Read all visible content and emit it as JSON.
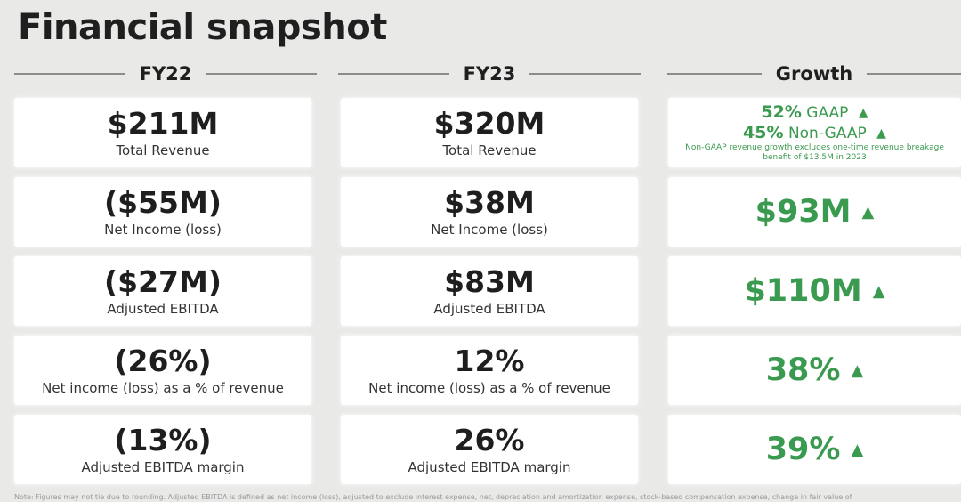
{
  "title": "Financial snapshot",
  "columns": {
    "fy22": "FY22",
    "fy23": "FY23",
    "growth": "Growth"
  },
  "fy22": [
    {
      "value": "$211M",
      "label": "Total Revenue"
    },
    {
      "value": "($55M)",
      "label": "Net Income (loss)"
    },
    {
      "value": "($27M)",
      "label": "Adjusted EBITDA"
    },
    {
      "value": "(26%)",
      "label": "Net income (loss) as a % of revenue"
    },
    {
      "value": "(13%)",
      "label": "Adjusted EBITDA margin"
    }
  ],
  "fy23": [
    {
      "value": "$320M",
      "label": "Total Revenue"
    },
    {
      "value": "$38M",
      "label": "Net Income (loss)"
    },
    {
      "value": "$83M",
      "label": "Adjusted EBITDA"
    },
    {
      "value": "12%",
      "label": "Net income (loss) as a % of revenue"
    },
    {
      "value": "26%",
      "label": "Adjusted EBITDA margin"
    }
  ],
  "growth": {
    "revenue": {
      "gaap_value": "52%",
      "gaap_label": "GAAP",
      "nongaap_value": "45%",
      "nongaap_label": "Non-GAAP",
      "note_line1": "Non-GAAP revenue growth excludes one-time revenue breakage",
      "note_line2": "benefit of $13.5M in 2023"
    },
    "net_income": "$93M",
    "adjusted_ebitda": "$110M",
    "net_income_pct": "38%",
    "ebitda_margin": "39%"
  },
  "arrow_glyph": "▲",
  "accent_color": "#3a9a4f",
  "footnote": "Note: Figures may not tie due to rounding. Adjusted EBITDA is defined as net income (loss), adjusted to exclude interest expense, net, depreciation and amortization expense, stock-based compensation expense, change in fair value of"
}
